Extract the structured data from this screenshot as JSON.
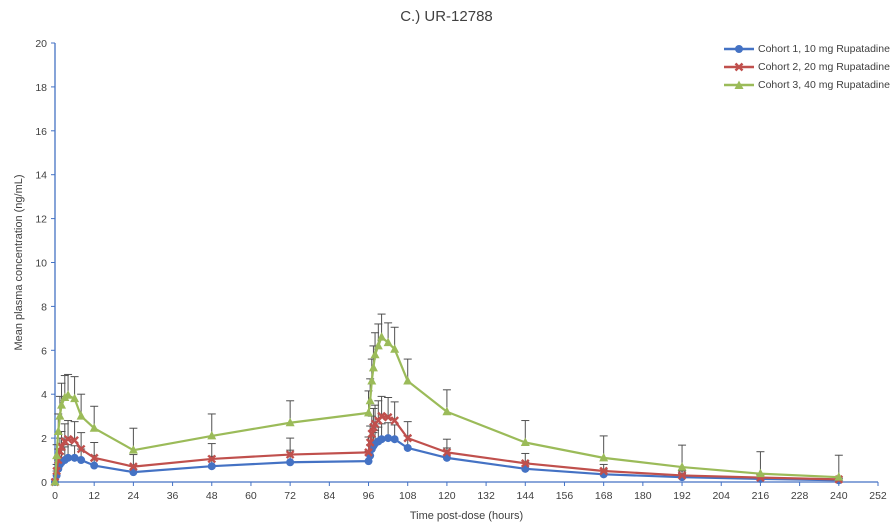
{
  "chart_data": {
    "type": "line",
    "title": "C.) UR-12788",
    "xlabel": "Time post-dose (hours)",
    "ylabel": "Mean plasma concentration (ng/mL)",
    "xlim": [
      0,
      252
    ],
    "ylim": [
      0,
      20
    ],
    "xticks": [
      0,
      12,
      24,
      36,
      48,
      60,
      72,
      84,
      96,
      108,
      120,
      132,
      144,
      156,
      168,
      180,
      192,
      204,
      216,
      228,
      240,
      252
    ],
    "yticks": [
      0,
      2,
      4,
      6,
      8,
      10,
      12,
      14,
      16,
      18,
      20
    ],
    "grid": false,
    "legend_position": "top-right",
    "series": [
      {
        "name": "Cohort 1, 10 mg Rupatadine",
        "color": "#4472C4",
        "marker": "circle",
        "x": [
          0,
          0.5,
          1,
          1.5,
          2,
          3,
          4,
          6,
          8,
          12,
          24,
          48,
          72,
          96,
          96.5,
          97,
          97.5,
          98,
          99,
          100,
          102,
          104,
          108,
          120,
          144,
          168,
          192,
          216,
          240
        ],
        "y": [
          0,
          0.3,
          0.6,
          0.8,
          0.9,
          1.0,
          1.1,
          1.1,
          1.0,
          0.75,
          0.45,
          0.72,
          0.9,
          0.95,
          1.2,
          1.5,
          1.65,
          1.75,
          1.85,
          1.95,
          2.0,
          1.95,
          1.55,
          1.1,
          0.6,
          0.35,
          0.22,
          0.14,
          0.08
        ],
        "error": [
          0,
          0.2,
          0.4,
          0.5,
          0.55,
          0.6,
          0.6,
          0.55,
          0.5,
          0.45,
          0.3,
          0.45,
          0.55,
          0.45,
          0.5,
          0.55,
          0.6,
          0.6,
          0.65,
          0.7,
          0.7,
          0.65,
          0.55,
          0.45,
          0.3,
          0.2,
          0.15,
          0.1,
          0.08
        ]
      },
      {
        "name": "Cohort 2, 20 mg Rupatadine",
        "color": "#C0504D",
        "marker": "x",
        "x": [
          0,
          0.5,
          1,
          1.5,
          2,
          3,
          4,
          6,
          8,
          12,
          24,
          48,
          72,
          96,
          96.5,
          97,
          97.5,
          98,
          99,
          100,
          102,
          104,
          108,
          120,
          144,
          168,
          192,
          216,
          240
        ],
        "y": [
          0,
          0.5,
          1.0,
          1.4,
          1.6,
          1.85,
          1.95,
          1.9,
          1.5,
          1.1,
          0.7,
          1.05,
          1.25,
          1.35,
          1.8,
          2.2,
          2.5,
          2.65,
          2.8,
          3.0,
          2.95,
          2.8,
          2.0,
          1.35,
          0.85,
          0.5,
          0.3,
          0.2,
          0.12
        ],
        "error": [
          0,
          0.3,
          0.5,
          0.6,
          0.7,
          0.8,
          0.85,
          0.85,
          0.75,
          0.7,
          0.55,
          0.7,
          0.75,
          0.7,
          0.75,
          0.8,
          0.85,
          0.85,
          0.9,
          0.9,
          0.9,
          0.85,
          0.75,
          0.6,
          0.45,
          0.3,
          0.2,
          0.15,
          0.1
        ]
      },
      {
        "name": "Cohort 3, 40 mg Rupatadine",
        "color": "#9BBB59",
        "marker": "triangle",
        "x": [
          0,
          0.5,
          1,
          1.5,
          2,
          3,
          4,
          6,
          8,
          12,
          24,
          48,
          72,
          96,
          96.5,
          97,
          97.5,
          98,
          99,
          100,
          102,
          104,
          108,
          120,
          144,
          168,
          192,
          216,
          240
        ],
        "y": [
          0,
          1.2,
          2.3,
          3.0,
          3.5,
          3.85,
          3.95,
          3.8,
          3.0,
          2.45,
          1.45,
          2.1,
          2.7,
          3.15,
          3.7,
          4.6,
          5.2,
          5.8,
          6.2,
          6.6,
          6.35,
          6.05,
          4.6,
          3.2,
          1.8,
          1.1,
          0.68,
          0.38,
          0.22
        ],
        "error": [
          0,
          0.5,
          0.8,
          0.9,
          1.0,
          1.0,
          0.95,
          1.0,
          1.0,
          1.0,
          1.0,
          1.0,
          1.0,
          1.0,
          1.0,
          1.0,
          1.0,
          1.0,
          1.0,
          1.05,
          0.9,
          1.0,
          1.0,
          1.0,
          1.0,
          1.0,
          1.0,
          1.0,
          1.0
        ]
      }
    ]
  }
}
